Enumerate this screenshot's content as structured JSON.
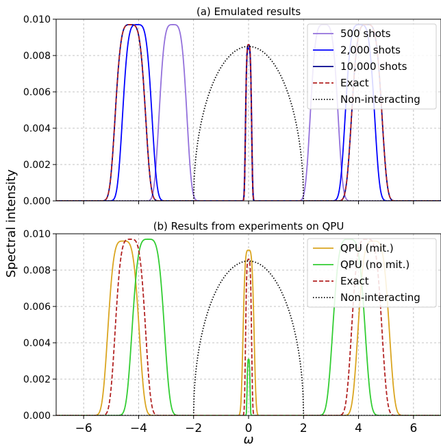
{
  "figure": {
    "ylabel": "Spectral intensity",
    "xlabel": "ω"
  },
  "chart_data": [
    {
      "type": "line",
      "title": "(a) Emulated results",
      "xlim": [
        -7,
        7
      ],
      "ylim": [
        0,
        0.01
      ],
      "x_ticks": [
        -6,
        -4,
        -2,
        0,
        2,
        4,
        6
      ],
      "y_ticks": [
        0.0,
        0.002,
        0.004,
        0.006,
        0.008,
        0.01
      ],
      "y_tick_labels": [
        "0.000",
        "0.002",
        "0.004",
        "0.006",
        "0.008",
        "0.010"
      ],
      "x_tick_labels": [],
      "grid": true,
      "legend_position": "top-right",
      "series": [
        {
          "name": "500 shots",
          "color": "#9370db",
          "style": "solid",
          "kind": "peaks",
          "peaks": [
            {
              "center": -2.75,
              "height": 0.0097,
              "width": 0.55
            },
            {
              "center": 0.0,
              "height": 0.0085,
              "width": 0.13
            },
            {
              "center": 2.75,
              "height": 0.0097,
              "width": 0.55
            }
          ]
        },
        {
          "name": "2,000 shots",
          "color": "#0000ff",
          "style": "solid",
          "kind": "peaks",
          "peaks": [
            {
              "center": -4.05,
              "height": 0.0097,
              "width": 0.58
            },
            {
              "center": 0.0,
              "height": 0.0084,
              "width": 0.12
            },
            {
              "center": 4.05,
              "height": 0.0097,
              "width": 0.58
            }
          ]
        },
        {
          "name": "10,000 shots",
          "color": "#00008b",
          "style": "solid",
          "kind": "peaks",
          "peaks": [
            {
              "center": -4.3,
              "height": 0.0097,
              "width": 0.6
            },
            {
              "center": 0.0,
              "height": 0.0086,
              "width": 0.12
            },
            {
              "center": 4.3,
              "height": 0.0097,
              "width": 0.6
            }
          ]
        },
        {
          "name": "Exact",
          "color": "#b22222",
          "style": "dashed",
          "kind": "peaks",
          "peaks": [
            {
              "center": -4.3,
              "height": 0.0097,
              "width": 0.6
            },
            {
              "center": 0.0,
              "height": 0.0086,
              "width": 0.12
            },
            {
              "center": 4.3,
              "height": 0.0097,
              "width": 0.6
            }
          ]
        },
        {
          "name": "Non-interacting",
          "color": "#000000",
          "style": "dotted",
          "kind": "semicircle",
          "center": 0.0,
          "halfwidth": 2.0,
          "height": 0.0085
        }
      ]
    },
    {
      "type": "line",
      "title": "(b) Results from experiments on QPU",
      "xlim": [
        -7,
        7
      ],
      "ylim": [
        0,
        0.01
      ],
      "x_ticks": [
        -6,
        -4,
        -2,
        0,
        2,
        4,
        6
      ],
      "x_tick_labels": [
        "−6",
        "−4",
        "−2",
        "0",
        "2",
        "4",
        "6"
      ],
      "y_ticks": [
        0.0,
        0.002,
        0.004,
        0.006,
        0.008,
        0.01
      ],
      "y_tick_labels": [
        "0.000",
        "0.002",
        "0.004",
        "0.006",
        "0.008",
        "0.010"
      ],
      "grid": true,
      "legend_position": "top-right",
      "series": [
        {
          "name": "QPU (mit.)",
          "color": "#daa520",
          "style": "solid",
          "kind": "peaks",
          "peaks": [
            {
              "center": -4.55,
              "height": 0.0096,
              "width": 0.62
            },
            {
              "center": 0.0,
              "height": 0.0091,
              "width": 0.22
            },
            {
              "center": 4.55,
              "height": 0.0096,
              "width": 0.62
            }
          ]
        },
        {
          "name": "QPU (no mit.)",
          "color": "#32cd32",
          "style": "solid",
          "kind": "peaks",
          "peaks": [
            {
              "center": -3.65,
              "height": 0.0097,
              "width": 0.64
            },
            {
              "center": 0.0,
              "height": 0.0031,
              "width": 0.06
            },
            {
              "center": 3.65,
              "height": 0.0097,
              "width": 0.64
            }
          ]
        },
        {
          "name": "Exact",
          "color": "#b22222",
          "style": "dashed",
          "kind": "peaks",
          "peaks": [
            {
              "center": -4.3,
              "height": 0.0097,
              "width": 0.6
            },
            {
              "center": 0.0,
              "height": 0.0086,
              "width": 0.12
            },
            {
              "center": 4.3,
              "height": 0.0097,
              "width": 0.6
            }
          ]
        },
        {
          "name": "Non-interacting",
          "color": "#000000",
          "style": "dotted",
          "kind": "semicircle",
          "center": 0.0,
          "halfwidth": 2.0,
          "height": 0.0085
        }
      ]
    }
  ]
}
